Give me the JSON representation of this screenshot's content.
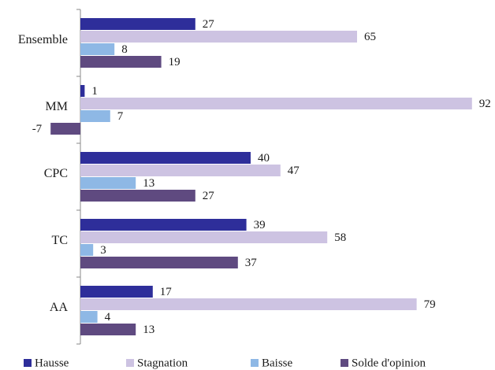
{
  "chart_data": {
    "type": "bar",
    "orientation": "horizontal",
    "categories": [
      "Ensemble",
      "MM",
      "CPC",
      "TC",
      "AA"
    ],
    "series": [
      {
        "name": "Hausse",
        "color": "#2e2e9a",
        "values": [
          27,
          1,
          40,
          39,
          17
        ]
      },
      {
        "name": "Stagnation",
        "color": "#cdc3e2",
        "values": [
          65,
          92,
          47,
          58,
          79
        ]
      },
      {
        "name": "Baisse",
        "color": "#8eb8e5",
        "values": [
          8,
          7,
          13,
          3,
          4
        ]
      },
      {
        "name": "Solde d'opinion",
        "color": "#5f4a80",
        "values": [
          19,
          -7,
          27,
          37,
          13
        ]
      }
    ],
    "xlim": [
      -7,
      92
    ],
    "grid": false,
    "legend_position": "bottom",
    "title": "",
    "xlabel": "",
    "ylabel": ""
  }
}
